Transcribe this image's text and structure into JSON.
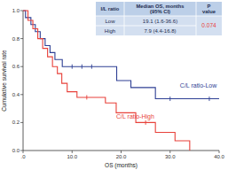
{
  "chart_data": {
    "type": "step",
    "x_label": "OS (months)",
    "y_label": "Cumulative survival rate",
    "xlim": [
      0,
      40
    ],
    "ylim": [
      0,
      1
    ],
    "xticks": [
      {
        "value": 0,
        "label": ".0"
      },
      {
        "value": 10,
        "label": "10.0"
      },
      {
        "value": 20,
        "label": "20.0"
      },
      {
        "value": 30,
        "label": "30.0"
      },
      {
        "value": 40,
        "label": "40.0"
      }
    ],
    "yticks": [
      {
        "value": 0,
        "label": "0.0"
      },
      0.2,
      0.4,
      0.6,
      0.8,
      {
        "value": 1,
        "label": "1.0"
      }
    ],
    "grid": false,
    "series": [
      {
        "color": "#2e3f94",
        "marker": "tick",
        "x": [
          0,
          0.5,
          1.6,
          2.5,
          3.5,
          4.5,
          5.5,
          6.5,
          8,
          19.1,
          22,
          27,
          40
        ],
        "values": [
          1,
          0.95,
          0.9,
          0.85,
          0.8,
          0.75,
          0.7,
          0.65,
          0.6,
          0.5,
          0.45,
          0.37,
          0.37
        ],
        "censored": [
          10,
          12,
          14,
          30,
          38
        ]
      },
      {
        "color": "#e8413a",
        "marker": "tick",
        "x": [
          0,
          1,
          2,
          3,
          4,
          5,
          6,
          7,
          7.9,
          9,
          11,
          16.8,
          19,
          23,
          27,
          31,
          34
        ],
        "values": [
          1,
          0.93,
          0.87,
          0.8,
          0.73,
          0.67,
          0.6,
          0.55,
          0.48,
          0.42,
          0.38,
          0.34,
          0.27,
          0.2,
          0.13,
          0.07,
          0
        ],
        "censored": [
          13,
          25
        ]
      }
    ],
    "annotations": [
      {
        "text": "C/L ratio-Low",
        "x": 39.5,
        "y": 0.45,
        "color": "#2e3f94"
      },
      {
        "text": "C/L ratio-High",
        "x": 19,
        "y": 0.23,
        "color": "#e8413a"
      }
    ],
    "table": {
      "header": [
        [
          "I/L ratio"
        ],
        [
          "Median OS, months",
          "(95% CI)"
        ],
        [
          "P",
          "value"
        ]
      ],
      "rows": [
        [
          "Low",
          "19.1 (1.6-36.6)"
        ],
        [
          "High",
          "7.9 (4.4-16.8)"
        ]
      ],
      "p_value": "0.074",
      "p_color": "#e8413a"
    }
  }
}
